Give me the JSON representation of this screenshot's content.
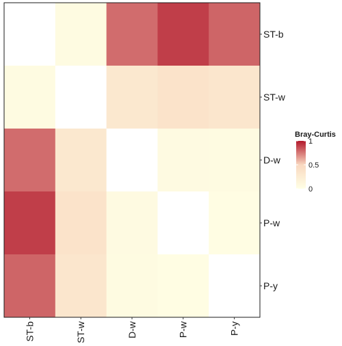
{
  "chart_data": {
    "type": "heatmap",
    "metric": "Bray-Curtis",
    "x_categories": [
      "ST-b",
      "ST-w",
      "D-w",
      "P-w",
      "P-y"
    ],
    "y_categories": [
      "ST-b",
      "ST-w",
      "D-w",
      "P-w",
      "P-y"
    ],
    "values": [
      [
        0.0,
        0.05,
        0.78,
        0.9,
        0.8
      ],
      [
        0.05,
        0.0,
        0.3,
        0.36,
        0.32
      ],
      [
        0.78,
        0.3,
        0.0,
        0.06,
        0.05
      ],
      [
        0.9,
        0.36,
        0.06,
        0.0,
        0.03
      ],
      [
        0.8,
        0.32,
        0.05,
        0.03,
        0.0
      ]
    ],
    "color_scale": {
      "low": "#ffffe5",
      "mid": "#f9d8c0",
      "high": "#b2182b",
      "domain": [
        0,
        1
      ]
    },
    "legend": {
      "title": "Bray-Curtis",
      "ticks": [
        1,
        0.5,
        0
      ],
      "position": "right"
    }
  }
}
